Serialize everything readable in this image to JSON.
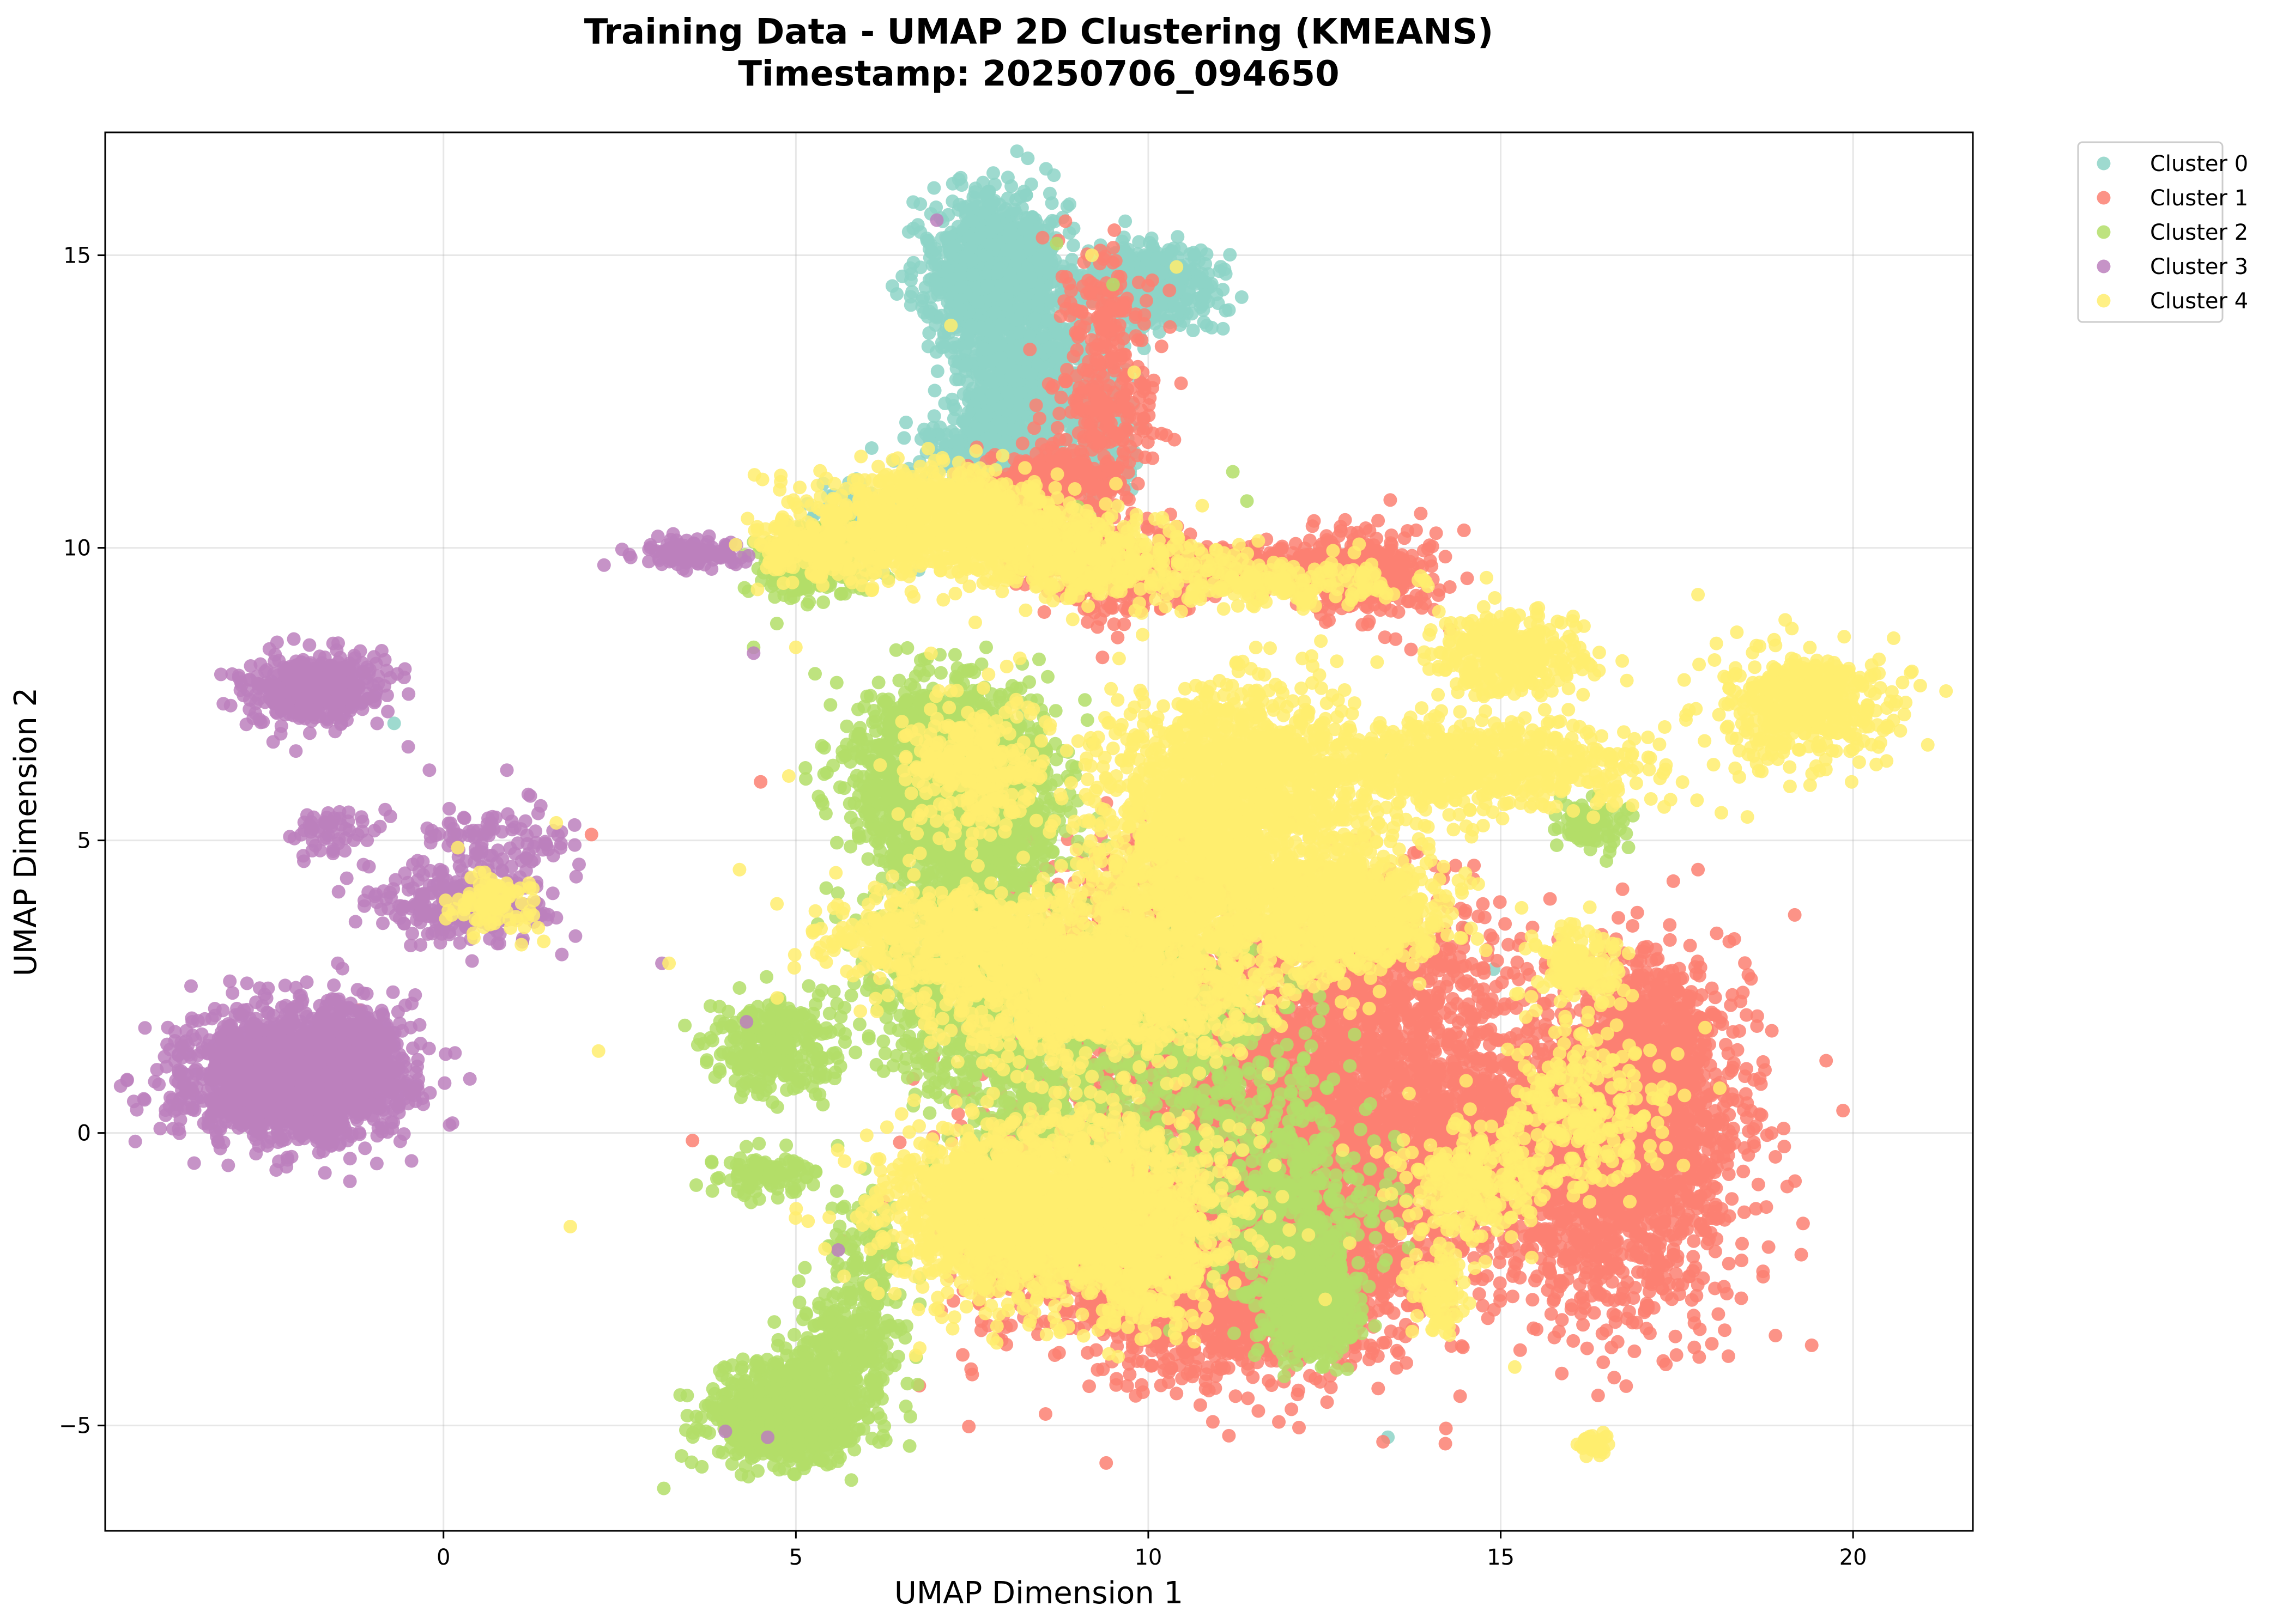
{
  "chart_data": {
    "type": "scatter",
    "title": "Training Data - UMAP 2D Clustering (KMEANS)",
    "subtitle": "Timestamp: 20250706_094650",
    "xlabel": "UMAP Dimension 1",
    "ylabel": "UMAP Dimension 2",
    "xlim": [
      -4.8,
      21.7
    ],
    "ylim": [
      -6.8,
      17.1
    ],
    "xticks": [
      0,
      5,
      10,
      15,
      20
    ],
    "yticks": [
      -5,
      0,
      5,
      10,
      15
    ],
    "xtick_labels": [
      "0",
      "5",
      "10",
      "15",
      "20"
    ],
    "ytick_labels": [
      "−5",
      "0",
      "5",
      "10",
      "15"
    ],
    "grid": true,
    "legend_position": "outside top-right",
    "series": [
      {
        "name": "Cluster 0",
        "color": "#8dd3c7",
        "regions": [
          {
            "x": 7.8,
            "y": 14.7,
            "sx": 0.45,
            "sy": 0.65,
            "n": 1100
          },
          {
            "x": 9.9,
            "y": 14.5,
            "sx": 0.5,
            "sy": 0.35,
            "n": 500
          },
          {
            "x": 8.2,
            "y": 12.8,
            "sx": 0.45,
            "sy": 0.7,
            "n": 800
          },
          {
            "x": 9.3,
            "y": 12.0,
            "sx": 0.25,
            "sy": 0.55,
            "n": 250
          },
          {
            "x": 7.6,
            "y": 11.6,
            "sx": 0.4,
            "sy": 0.35,
            "n": 300
          },
          {
            "x": 6.0,
            "y": 10.4,
            "sx": 0.4,
            "sy": 0.35,
            "n": 150
          }
        ],
        "outliers": [
          [
            6.6,
            15.4
          ],
          [
            13.4,
            -5.2
          ],
          [
            14.5,
            3.5
          ],
          [
            14.9,
            2.8
          ],
          [
            -0.7,
            7.0
          ],
          [
            12.4,
            -0.3
          ]
        ]
      },
      {
        "name": "Cluster 1",
        "color": "#fb8072",
        "regions": [
          {
            "x": 8.6,
            "y": 11.1,
            "sx": 0.45,
            "sy": 0.3,
            "n": 300
          },
          {
            "x": 9.4,
            "y": 14.0,
            "sx": 0.3,
            "sy": 0.6,
            "n": 120
          },
          {
            "x": 9.4,
            "y": 12.3,
            "sx": 0.35,
            "sy": 0.6,
            "n": 200
          },
          {
            "x": 9.5,
            "y": 9.7,
            "sx": 0.6,
            "sy": 0.45,
            "n": 300
          },
          {
            "x": 11.5,
            "y": 9.7,
            "sx": 1.0,
            "sy": 0.2,
            "n": 250
          },
          {
            "x": 13.1,
            "y": 9.6,
            "sx": 0.5,
            "sy": 0.4,
            "n": 300
          },
          {
            "x": 11.5,
            "y": 0.3,
            "sx": 1.7,
            "sy": 1.6,
            "n": 2600
          },
          {
            "x": 10.9,
            "y": -2.6,
            "sx": 1.3,
            "sy": 0.75,
            "n": 1500
          },
          {
            "x": 12.8,
            "y": -0.8,
            "sx": 1.1,
            "sy": 1.3,
            "n": 900
          },
          {
            "x": 13.4,
            "y": 2.5,
            "sx": 0.8,
            "sy": 0.9,
            "n": 500
          },
          {
            "x": 16.6,
            "y": -0.5,
            "sx": 0.9,
            "sy": 1.3,
            "n": 1700
          },
          {
            "x": 17.1,
            "y": 1.4,
            "sx": 0.55,
            "sy": 0.8,
            "n": 700
          },
          {
            "x": 15.0,
            "y": 0.2,
            "sx": 0.8,
            "sy": 0.6,
            "n": 400
          },
          {
            "x": 9.8,
            "y": 3.5,
            "sx": 1.0,
            "sy": 0.9,
            "n": 350
          },
          {
            "x": 8.2,
            "y": -1.5,
            "sx": 0.6,
            "sy": 1.0,
            "n": 300
          }
        ],
        "outliers": [
          [
            17.8,
            4.5
          ],
          [
            2.1,
            5.1
          ],
          [
            4.5,
            6.0
          ],
          [
            -1.2,
            2.1
          ],
          [
            13.8,
            10.3
          ],
          [
            8.5,
            15.3
          ],
          [
            9.5,
            14.2
          ],
          [
            10.3,
            14.4
          ],
          [
            15.7,
            4.0
          ],
          [
            14.2,
            4.5
          ],
          [
            13.1,
            -1.9
          ],
          [
            12.4,
            -3.6
          ]
        ]
      },
      {
        "name": "Cluster 2",
        "color": "#b3de69",
        "regions": [
          {
            "x": 7.2,
            "y": 6.1,
            "sx": 0.65,
            "sy": 0.75,
            "n": 1800
          },
          {
            "x": 7.6,
            "y": 4.6,
            "sx": 0.6,
            "sy": 0.6,
            "n": 400
          },
          {
            "x": 7.3,
            "y": 2.6,
            "sx": 0.7,
            "sy": 0.8,
            "n": 500
          },
          {
            "x": 8.3,
            "y": 1.0,
            "sx": 0.7,
            "sy": 0.7,
            "n": 350
          },
          {
            "x": 4.7,
            "y": 1.5,
            "sx": 0.45,
            "sy": 0.4,
            "n": 300
          },
          {
            "x": 4.6,
            "y": -0.7,
            "sx": 0.35,
            "sy": 0.2,
            "n": 100
          },
          {
            "x": 4.9,
            "y": -4.8,
            "sx": 0.55,
            "sy": 0.4,
            "n": 900
          },
          {
            "x": 5.7,
            "y": -3.7,
            "sx": 0.45,
            "sy": 0.5,
            "n": 300
          },
          {
            "x": 6.0,
            "y": -2.0,
            "sx": 0.25,
            "sy": 0.5,
            "n": 100
          },
          {
            "x": 12.3,
            "y": -3.0,
            "sx": 0.3,
            "sy": 0.4,
            "n": 500
          },
          {
            "x": 12.0,
            "y": -1.3,
            "sx": 0.6,
            "sy": 0.8,
            "n": 400
          },
          {
            "x": 10.7,
            "y": 0.8,
            "sx": 0.9,
            "sy": 1.0,
            "n": 400
          },
          {
            "x": 9.6,
            "y": 2.4,
            "sx": 0.7,
            "sy": 0.6,
            "n": 300
          },
          {
            "x": 5.2,
            "y": 9.7,
            "sx": 0.4,
            "sy": 0.3,
            "n": 250
          },
          {
            "x": 16.3,
            "y": 5.3,
            "sx": 0.25,
            "sy": 0.25,
            "n": 80
          }
        ],
        "outliers": [
          [
            11.4,
            10.8
          ],
          [
            11.2,
            11.3
          ],
          [
            8.7,
            15.2
          ],
          [
            9.5,
            14.5
          ],
          [
            4.4,
            8.3
          ],
          [
            9.1,
            7.4
          ],
          [
            9.0,
            10.7
          ],
          [
            7.7,
            8.3
          ],
          [
            4.4,
            10.1
          ],
          [
            13.3,
            6.5
          ],
          [
            10.2,
            9.5
          ]
        ]
      },
      {
        "name": "Cluster 3",
        "color": "#bc80bd",
        "regions": [
          {
            "x": -2.2,
            "y": 1.0,
            "sx": 0.75,
            "sy": 0.55,
            "n": 1600
          },
          {
            "x": -1.4,
            "y": 1.2,
            "sx": 0.5,
            "sy": 0.55,
            "n": 500
          },
          {
            "x": -1.8,
            "y": 7.6,
            "sx": 0.45,
            "sy": 0.3,
            "n": 450
          },
          {
            "x": 0.3,
            "y": 3.9,
            "sx": 0.6,
            "sy": 0.3,
            "n": 250
          },
          {
            "x": 0.8,
            "y": 5.0,
            "sx": 0.6,
            "sy": 0.4,
            "n": 100
          },
          {
            "x": -1.6,
            "y": 5.1,
            "sx": 0.35,
            "sy": 0.2,
            "n": 60
          },
          {
            "x": 3.5,
            "y": 9.9,
            "sx": 0.35,
            "sy": 0.12,
            "n": 130
          },
          {
            "x": -1.6,
            "y": 0.1,
            "sx": 0.25,
            "sy": 0.15,
            "n": 50
          }
        ],
        "outliers": [
          [
            -0.2,
            6.2
          ],
          [
            0.9,
            6.2
          ],
          [
            -1.5,
            2.9
          ],
          [
            4.3,
            1.9
          ],
          [
            7.0,
            15.6
          ],
          [
            4.4,
            8.2
          ],
          [
            4.0,
            -5.1
          ],
          [
            4.6,
            -5.2
          ],
          [
            5.6,
            -2.0
          ],
          [
            3.1,
            2.9
          ],
          [
            -0.5,
            6.6
          ],
          [
            0.8,
            3.4
          ]
        ]
      },
      {
        "name": "Cluster 4",
        "color": "#ffed6f",
        "regions": [
          {
            "x": 7.0,
            "y": 10.5,
            "sx": 0.9,
            "sy": 0.4,
            "n": 900
          },
          {
            "x": 5.5,
            "y": 10.0,
            "sx": 0.6,
            "sy": 0.3,
            "n": 250
          },
          {
            "x": 9.0,
            "y": 9.8,
            "sx": 0.9,
            "sy": 0.35,
            "n": 450
          },
          {
            "x": 11.8,
            "y": 9.4,
            "sx": 0.9,
            "sy": 0.2,
            "n": 200
          },
          {
            "x": 15.1,
            "y": 8.2,
            "sx": 0.5,
            "sy": 0.35,
            "n": 400
          },
          {
            "x": 14.4,
            "y": 6.3,
            "sx": 1.3,
            "sy": 0.4,
            "n": 800
          },
          {
            "x": 11.2,
            "y": 6.0,
            "sx": 0.9,
            "sy": 0.8,
            "n": 1200
          },
          {
            "x": 11.1,
            "y": 4.2,
            "sx": 1.1,
            "sy": 0.7,
            "n": 1100
          },
          {
            "x": 9.3,
            "y": 2.5,
            "sx": 1.2,
            "sy": 0.6,
            "n": 1100
          },
          {
            "x": 7.2,
            "y": 3.3,
            "sx": 0.9,
            "sy": 0.45,
            "n": 500
          },
          {
            "x": 8.9,
            "y": -1.3,
            "sx": 1.1,
            "sy": 0.8,
            "n": 1700
          },
          {
            "x": 7.4,
            "y": -1.3,
            "sx": 0.6,
            "sy": 0.6,
            "n": 400
          },
          {
            "x": 10.0,
            "y": -2.5,
            "sx": 0.4,
            "sy": 0.5,
            "n": 200
          },
          {
            "x": 12.9,
            "y": 3.7,
            "sx": 0.7,
            "sy": 0.45,
            "n": 600
          },
          {
            "x": 14.6,
            "y": -0.8,
            "sx": 0.5,
            "sy": 0.5,
            "n": 250
          },
          {
            "x": 16.1,
            "y": 2.9,
            "sx": 0.35,
            "sy": 0.35,
            "n": 150
          },
          {
            "x": 19.3,
            "y": 7.3,
            "sx": 0.6,
            "sy": 0.45,
            "n": 500
          },
          {
            "x": 0.7,
            "y": 3.9,
            "sx": 0.3,
            "sy": 0.25,
            "n": 100
          },
          {
            "x": 14.1,
            "y": -2.6,
            "sx": 0.2,
            "sy": 0.4,
            "n": 100
          },
          {
            "x": 16.3,
            "y": -5.3,
            "sx": 0.12,
            "sy": 0.1,
            "n": 40
          },
          {
            "x": 7.5,
            "y": 6.3,
            "sx": 0.5,
            "sy": 0.6,
            "n": 300
          },
          {
            "x": 16.2,
            "y": 0.3,
            "sx": 0.6,
            "sy": 0.7,
            "n": 250
          }
        ],
        "outliers": [
          [
            17.8,
            9.2
          ],
          [
            2.2,
            1.4
          ],
          [
            1.8,
            -1.6
          ],
          [
            3.2,
            2.9
          ],
          [
            4.2,
            4.5
          ],
          [
            4.9,
            6.1
          ],
          [
            18.5,
            5.4
          ],
          [
            15.2,
            -4.0
          ],
          [
            6.7,
            -3.8
          ],
          [
            9.2,
            15.0
          ],
          [
            9.8,
            13.0
          ],
          [
            10.4,
            14.8
          ],
          [
            7.2,
            13.8
          ],
          [
            1.6,
            5.3
          ],
          [
            5.0,
            8.3
          ],
          [
            17.9,
            1.8
          ]
        ]
      }
    ]
  }
}
